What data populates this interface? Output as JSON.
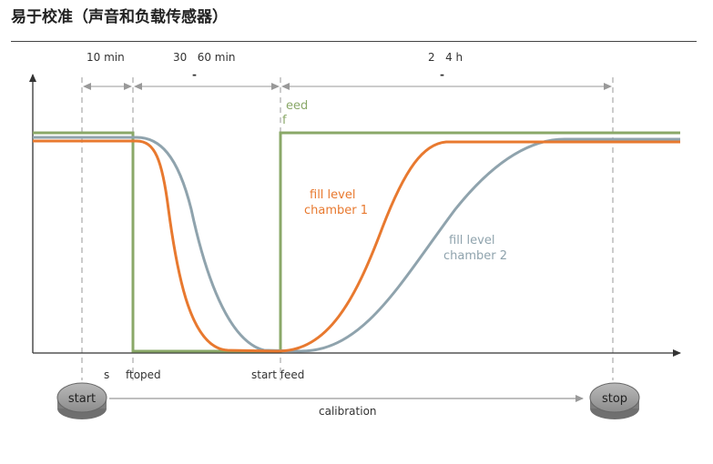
{
  "title": "易于校准（声音和负载传感器）",
  "timing": {
    "t1": "10 min",
    "t2": "30   60 min",
    "t2_dash": "-",
    "t3": "2   4 h",
    "t3_dash": "-"
  },
  "labels": {
    "feed_a": "eed",
    "feed_b": "f",
    "fill1_a": "fill level",
    "fill1_b": "chamber 1",
    "fill2_a": "fill level",
    "fill2_b": "chamber 2",
    "stop_feed_a": "s",
    "stop_feed_b": "ftoped",
    "start_feed": "start feed",
    "calibration": "calibration"
  },
  "buttons": {
    "start": "start",
    "stop": "stop"
  },
  "colors": {
    "feed": "#8aa868",
    "chamber1": "#e8792f",
    "chamber2": "#8fa3ad",
    "axis": "#333333",
    "guide": "#999999"
  }
}
